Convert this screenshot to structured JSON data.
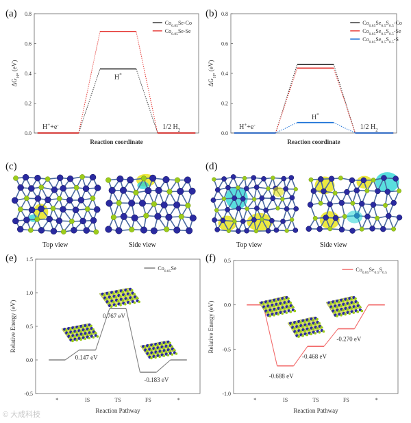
{
  "panel_labels": {
    "a": "(a)",
    "b": "(b)",
    "c": "(c)",
    "d": "(d)",
    "e": "(e)",
    "f": "(f)"
  },
  "view_captions": {
    "c_top": "Top view",
    "c_side": "Side view",
    "d_top": "Top view",
    "d_side": "Side view"
  },
  "colors": {
    "black_series": "#3a3a3a",
    "red_series": "#e53935",
    "blue_series": "#1e73d8",
    "grey_series": "#808080",
    "pink_series": "#f26b6b",
    "atom_blue": "#2a2aa0",
    "atom_green": "#9ccc1a",
    "iso_yellow": "#e6e000",
    "iso_cyan": "#22d3d3"
  },
  "chart_data": [
    {
      "id": "a",
      "type": "line",
      "title": "",
      "xlabel": "Reaction coordinate",
      "ylabel": "ΔG_H* (eV)",
      "ylim": [
        0.0,
        0.8
      ],
      "yticks": [
        "0.0",
        "0.2",
        "0.4",
        "0.6",
        "0.8"
      ],
      "stages": [
        "H⁺+e⁻",
        "H*",
        "1/2 H₂"
      ],
      "series": [
        {
          "name": "Co0.85Se-Co",
          "values": [
            0,
            0.43,
            0
          ],
          "color": "#3a3a3a"
        },
        {
          "name": "Co0.85Se-Se",
          "values": [
            0,
            0.68,
            0
          ],
          "color": "#e53935"
        }
      ],
      "legend": {
        "position": "top-right",
        "entries": [
          "Co0.85Se-Co",
          "Co0.85Se-Se"
        ]
      }
    },
    {
      "id": "b",
      "type": "line",
      "title": "",
      "xlabel": "Reaction coordinate",
      "ylabel": "ΔG_H* (eV)",
      "ylim": [
        0.0,
        0.8
      ],
      "yticks": [
        "0.0",
        "0.2",
        "0.4",
        "0.6",
        "0.8"
      ],
      "stages": [
        "H⁺+e⁻",
        "H*",
        "1/2 H₂"
      ],
      "series": [
        {
          "name": "Co0.85Se0.5S0.5-Co",
          "values": [
            0,
            0.46,
            0
          ],
          "color": "#3a3a3a"
        },
        {
          "name": "Co0.85Se0.5S0.5-Se",
          "values": [
            0,
            0.435,
            0
          ],
          "color": "#e53935"
        },
        {
          "name": "Co0.85Se0.5S0.5-S",
          "values": [
            0,
            0.07,
            0
          ],
          "color": "#1e73d8"
        }
      ],
      "legend": {
        "position": "top-right",
        "entries": [
          "Co0.85Se0.5S0.5-Co",
          "Co0.85Se0.5S0.5-Se",
          "Co0.85Se0.5S0.5-S"
        ]
      }
    },
    {
      "id": "e",
      "type": "line",
      "title": "",
      "xlabel": "Reaction Pathway",
      "ylabel": "Relative Energy (eV)",
      "ylim": [
        -0.5,
        1.5
      ],
      "yticks": [
        "-0.5",
        "0.0",
        "0.5",
        "1.0",
        "1.5"
      ],
      "categories": [
        "*",
        "IS",
        "TS",
        "FS",
        "*"
      ],
      "series": [
        {
          "name": "Co0.85Se",
          "values": [
            0,
            0.147,
            0.767,
            -0.183,
            0
          ],
          "color": "#808080"
        }
      ],
      "annotations": [
        "0.147 eV",
        "0.767 eV",
        "-0.183 eV"
      ],
      "legend": {
        "position": "top-right",
        "entries": [
          "Co0.85Se"
        ]
      }
    },
    {
      "id": "f",
      "type": "line",
      "title": "",
      "xlabel": "Reaction Pathway",
      "ylabel": "Relative Energy (eV)",
      "ylim": [
        -1.0,
        0.5
      ],
      "yticks": [
        "-1.0",
        "-0.5",
        "0.0",
        "0.5"
      ],
      "categories": [
        "*",
        "IS",
        "TS",
        "FS",
        "*"
      ],
      "series": [
        {
          "name": "Co0.85Se0.5S0.5",
          "values": [
            0,
            -0.688,
            -0.468,
            -0.27,
            0
          ],
          "color": "#f26b6b"
        }
      ],
      "annotations": [
        "-0.688 eV",
        "-0.468 eV",
        "-0.270 eV"
      ],
      "legend": {
        "position": "top-right",
        "entries": [
          "Co0.85Se0.5S0.5"
        ]
      }
    }
  ]
}
